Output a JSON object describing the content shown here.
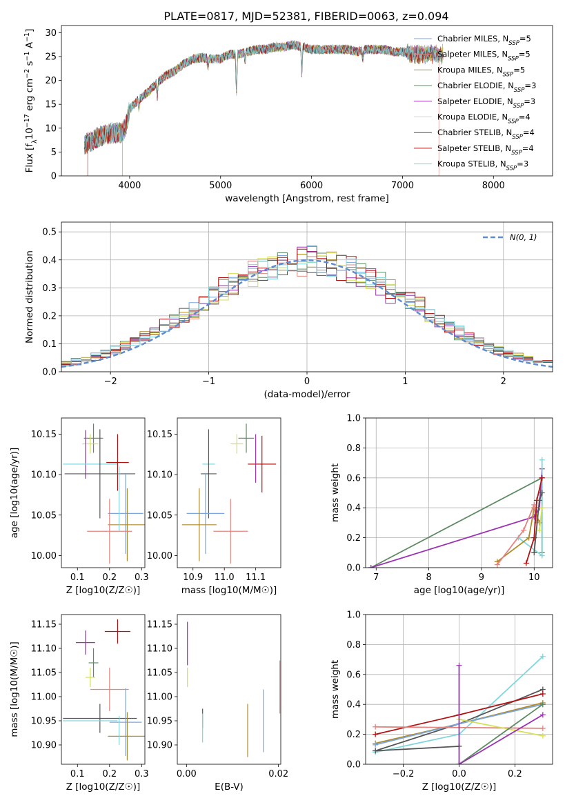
{
  "title": "PLATE=0817, MJD=52381, FIBERID=0063, z=0.094",
  "colors": {
    "Chabrier MILES": "#7aa6dd",
    "Salpeter MILES": "#e2847f",
    "Kroupa MILES": "#b08a2a",
    "Chabrier ELODIE": "#5d8a62",
    "Salpeter ELODIE": "#9a33b2",
    "Kroupa ELODIE": "#d6df55",
    "Chabrier STELIB": "#555555",
    "Salpeter STELIB": "#b11212",
    "Kroupa STELIB": "#7fd6dd",
    "ssp_orange": "#e07e1f",
    "ssp_blue": "#5f8ccf",
    "ssp_pink": "#e78ac3",
    "normal": "#5f8ccf"
  },
  "chart_data": [
    {
      "id": "spectrum",
      "type": "line",
      "title": "PLATE=0817, MJD=52381, FIBERID=0063, z=0.094",
      "xlabel": "wavelength [Angstrom, rest frame]",
      "ylabel_parts": [
        "Flux [f",
        "λ",
        "10",
        "−17",
        " erg cm",
        "−2",
        " s",
        "−1",
        " A",
        "−1",
        "]"
      ],
      "xlim": [
        3250,
        8650
      ],
      "ylim": [
        0,
        31.5
      ],
      "xticks": [
        "4000",
        "5000",
        "6000",
        "7000",
        "8000"
      ],
      "xtick_values": [
        4000,
        5000,
        6000,
        7000,
        8000
      ],
      "yticks": [
        "0",
        "5",
        "10",
        "15",
        "20",
        "25",
        "30"
      ],
      "ytick_values": [
        0,
        5,
        10,
        15,
        20,
        25,
        30
      ],
      "continuum_wavelength": [
        3500,
        3600,
        3700,
        3800,
        3900,
        3950,
        4000,
        4100,
        4200,
        4300,
        4400,
        4500,
        4600,
        4700,
        4800,
        4900,
        5000,
        5100,
        5200,
        5300,
        5400,
        5500,
        5600,
        5700,
        5800,
        5900,
        6000,
        6100,
        6200,
        6300,
        6400,
        6500,
        6600,
        6700,
        6800,
        6900,
        7000,
        7100,
        7200,
        7300,
        7400,
        7450
      ],
      "continuum_flux": [
        6.5,
        7.5,
        8.5,
        9,
        9,
        10,
        14,
        16,
        17.5,
        19.5,
        21,
        22,
        23.5,
        24.5,
        24.8,
        24.5,
        24.5,
        25.5,
        25.5,
        26,
        26.5,
        26.5,
        27,
        27,
        27.5,
        27,
        26.5,
        26.5,
        26.5,
        26.5,
        26.5,
        26,
        26.5,
        26.5,
        26.5,
        26,
        26,
        25.5,
        25.5,
        25.5,
        25.5,
        25.5
      ],
      "dips": [
        {
          "wavelength": 3934,
          "flux": 10
        },
        {
          "wavelength": 3968,
          "flux": 11
        },
        {
          "wavelength": 4101,
          "flux": 14
        },
        {
          "wavelength": 4304,
          "flux": 16.5
        },
        {
          "wavelength": 4861,
          "flux": 22.5
        },
        {
          "wavelength": 5175,
          "flux": 17
        },
        {
          "wavelength": 5270,
          "flux": 24
        },
        {
          "wavelength": 5893,
          "flux": 21
        },
        {
          "wavelength": 6563,
          "flux": 24.5
        }
      ],
      "legend": [
        {
          "label": "Chabrier MILES",
          "n": "5"
        },
        {
          "label": "Salpeter MILES",
          "n": "5"
        },
        {
          "label": "Kroupa MILES",
          "n": "5"
        },
        {
          "label": "Chabrier ELODIE",
          "n": "3"
        },
        {
          "label": "Salpeter ELODIE",
          "n": "3"
        },
        {
          "label": "Kroupa ELODIE",
          "n": "4"
        },
        {
          "label": "Chabrier STELIB",
          "n": "4"
        },
        {
          "label": "Salpeter STELIB",
          "n": "4"
        },
        {
          "label": "Kroupa STELIB",
          "n": "3"
        }
      ],
      "legend_n_prefix": "N",
      "legend_n_sub": "SSP",
      "legend_placement": "right",
      "edges": [
        {
          "series": "Salpeter STELIB",
          "wavelength": 3540
        },
        {
          "series": "Kroupa MILES",
          "wavelength": 3920
        },
        {
          "series": "Kroupa ELODIE",
          "wavelength": 6790
        },
        {
          "series": "Salpeter MILES",
          "wavelength": 7400
        }
      ]
    },
    {
      "id": "residuals",
      "type": "line",
      "subtype": "step-histogram",
      "xlabel": "(data-model)/error",
      "ylabel": "Normed distribution",
      "xlim": [
        -2.5,
        2.5
      ],
      "ylim": [
        0,
        0.535
      ],
      "xticks": [
        "−2",
        "−1",
        "0",
        "1",
        "2"
      ],
      "xtick_values": [
        -2,
        -1,
        0,
        1,
        2
      ],
      "yticks": [
        "0.0",
        "0.1",
        "0.2",
        "0.3",
        "0.4",
        "0.5"
      ],
      "ytick_values": [
        0,
        0.1,
        0.2,
        0.3,
        0.4,
        0.5
      ],
      "grid": true,
      "legend_label": "N(0, 1)",
      "legend_placement": "top-right",
      "bin_width": 0.1
    },
    {
      "id": "age-vs-z",
      "type": "scatter",
      "xlabel": "Z [log10(Z/Z☉)]",
      "ylabel": "age  [log10(age/yr)]",
      "xlim": [
        0.05,
        0.31
      ],
      "ylim": [
        9.985,
        10.17
      ],
      "xticks": [
        "0.1",
        "0.2",
        "0.3"
      ],
      "xtick_values": [
        0.1,
        0.2,
        0.3
      ],
      "yticks": [
        "10.00",
        "10.05",
        "10.10",
        "10.15"
      ],
      "ytick_values": [
        10.0,
        10.05,
        10.1,
        10.15
      ],
      "points": [
        {
          "series": "Chabrier ELODIE",
          "x": 0.15,
          "y": 10.145,
          "xerr": 0.03,
          "yerr": 0.018
        },
        {
          "series": "Kroupa ELODIE",
          "x": 0.14,
          "y": 10.138,
          "xerr": 0.025,
          "yerr": 0.012
        },
        {
          "series": "Salpeter ELODIE",
          "x": 0.125,
          "y": 10.125,
          "xerr": 0.0,
          "yerr": 0.03
        },
        {
          "series": "Kroupa STELIB",
          "x": 0.14,
          "y": 10.113,
          "xerr": 0.085,
          "yerr": 0.0
        },
        {
          "series": "Salpeter STELIB",
          "x": 0.225,
          "y": 10.115,
          "xerr": 0.035,
          "yerr": 0.035
        },
        {
          "series": "Chabrier STELIB",
          "x": 0.17,
          "y": 10.101,
          "xerr": 0.11,
          "yerr": 0.055
        },
        {
          "series": "Chabrier MILES",
          "x": 0.25,
          "y": 10.052,
          "xerr": 0.055,
          "yerr": 0.05
        },
        {
          "series": "Kroupa MILES",
          "x": 0.255,
          "y": 10.038,
          "xerr": 0.06,
          "yerr": 0.045
        },
        {
          "series": "Salpeter MILES",
          "x": 0.2,
          "y": 10.03,
          "xerr": 0.07,
          "yerr": 0.04
        },
        {
          "series": "Kroupa STELIB",
          "x": 0.23,
          "y": 10.07,
          "xerr": 0.0,
          "yerr": 0.04
        }
      ]
    },
    {
      "id": "age-vs-mass",
      "type": "scatter",
      "xlabel": "mass [log10(M/M☉)]",
      "ylabel": "",
      "xlim": [
        10.85,
        11.18
      ],
      "ylim": [
        9.985,
        10.17
      ],
      "xticks": [
        "10.9",
        "11.0",
        "11.1"
      ],
      "xtick_values": [
        10.9,
        11.0,
        11.1
      ],
      "yticks": [
        "10.00",
        "10.05",
        "10.10",
        "10.15"
      ],
      "ytick_values": [
        10.0,
        10.05,
        10.1,
        10.15
      ],
      "points": [
        {
          "series": "Chabrier ELODIE",
          "x": 11.07,
          "y": 10.145,
          "xerr": 0.025,
          "yerr": 0.018
        },
        {
          "series": "Kroupa ELODIE",
          "x": 11.04,
          "y": 10.138,
          "xerr": 0.02,
          "yerr": 0.012
        },
        {
          "series": "Salpeter STELIB",
          "x": 11.12,
          "y": 10.113,
          "xerr": 0.045,
          "yerr": 0.035
        },
        {
          "series": "Kroupa STELIB",
          "x": 10.95,
          "y": 10.113,
          "xerr": 0.02,
          "yerr": 0.0
        },
        {
          "series": "Chabrier STELIB",
          "x": 10.95,
          "y": 10.101,
          "xerr": 0.025,
          "yerr": 0.055
        },
        {
          "series": "Chabrier MILES",
          "x": 10.94,
          "y": 10.052,
          "xerr": 0.06,
          "yerr": 0.05
        },
        {
          "series": "Kroupa MILES",
          "x": 10.92,
          "y": 10.038,
          "xerr": 0.055,
          "yerr": 0.045
        },
        {
          "series": "Salpeter MILES",
          "x": 11.02,
          "y": 10.03,
          "xerr": 0.055,
          "yerr": 0.04
        },
        {
          "series": "Salpeter ELODIE",
          "x": 11.1,
          "y": 10.12,
          "xerr": 0.0,
          "yerr": 0.03
        }
      ]
    },
    {
      "id": "mass-weight-vs-age",
      "type": "line",
      "xlabel": "age  [log10(age/yr)]",
      "ylabel": "mass weight",
      "xlim": [
        6.8,
        10.35
      ],
      "ylim": [
        0,
        1
      ],
      "xticks": [
        "7",
        "8",
        "9",
        "10"
      ],
      "xtick_values": [
        7,
        8,
        9,
        10
      ],
      "yticks": [
        "0.0",
        "0.2",
        "0.4",
        "0.6",
        "0.8",
        "1.0"
      ],
      "ytick_values": [
        0,
        0.2,
        0.4,
        0.6,
        0.8,
        1.0
      ],
      "grid": true,
      "series": [
        {
          "name": "Chabrier ELODIE",
          "x": [
            6.9,
            10.15,
            10.15
          ],
          "y": [
            0.0,
            0.6,
            0.1
          ]
        },
        {
          "name": "Salpeter ELODIE",
          "x": [
            6.9,
            10.0,
            10.1,
            10.15
          ],
          "y": [
            0.0,
            0.34,
            0.4,
            0.66
          ]
        },
        {
          "name": "Kroupa STELIB",
          "x": [
            9.7,
            10.15,
            10.15
          ],
          "y": [
            0.2,
            0.08,
            0.72
          ]
        },
        {
          "name": "Kroupa MILES",
          "x": [
            9.3,
            9.9,
            10.0,
            10.1
          ],
          "y": [
            0.04,
            0.2,
            0.4,
            0.3
          ]
        },
        {
          "name": "Salpeter MILES",
          "x": [
            9.3,
            9.8,
            10.0,
            10.05
          ],
          "y": [
            0.02,
            0.25,
            0.42,
            0.3
          ]
        },
        {
          "name": "Salpeter STELIB",
          "x": [
            9.85,
            10.0,
            10.05,
            10.15
          ],
          "y": [
            0.03,
            0.2,
            0.45,
            0.6
          ]
        },
        {
          "name": "Chabrier STELIB",
          "x": [
            10.0,
            10.1,
            10.15
          ],
          "y": [
            0.1,
            0.45,
            0.5
          ]
        },
        {
          "name": "Kroupa ELODIE",
          "x": [
            10.1,
            10.15
          ],
          "y": [
            0.25,
            0.4
          ]
        }
      ]
    },
    {
      "id": "mass-vs-z",
      "type": "scatter",
      "xlabel": "Z [log10(Z/Z☉)]",
      "ylabel": "mass [log10(M/M☉)]",
      "xlim": [
        0.05,
        0.31
      ],
      "ylim": [
        10.86,
        11.17
      ],
      "xticks": [
        "0.1",
        "0.2",
        "0.3"
      ],
      "xtick_values": [
        0.1,
        0.2,
        0.3
      ],
      "yticks": [
        "10.90",
        "10.95",
        "11.00",
        "11.05",
        "11.10",
        "11.15"
      ],
      "ytick_values": [
        10.9,
        10.95,
        11.0,
        11.05,
        11.1,
        11.15
      ],
      "points": [
        {
          "series": "Salpeter STELIB",
          "x": 0.225,
          "y": 11.135,
          "xerr": 0.04,
          "yerr": 0.025
        },
        {
          "series": "Salpeter ELODIE",
          "x": 0.125,
          "y": 11.112,
          "xerr": 0.03,
          "yerr": 0.025
        },
        {
          "series": "Chabrier ELODIE",
          "x": 0.15,
          "y": 11.07,
          "xerr": 0.015,
          "yerr": 0.03
        },
        {
          "series": "Kroupa ELODIE",
          "x": 0.14,
          "y": 11.04,
          "xerr": 0.015,
          "yerr": 0.02
        },
        {
          "series": "Salpeter MILES",
          "x": 0.2,
          "y": 11.015,
          "xerr": 0.06,
          "yerr": 0.045
        },
        {
          "series": "Chabrier STELIB",
          "x": 0.17,
          "y": 10.955,
          "xerr": 0.115,
          "yerr": 0.03
        },
        {
          "series": "Kroupa STELIB",
          "x": 0.14,
          "y": 10.95,
          "xerr": 0.085,
          "yerr": 0.0
        },
        {
          "series": "Chabrier MILES",
          "x": 0.25,
          "y": 10.947,
          "xerr": 0.05,
          "yerr": 0.07
        },
        {
          "series": "Kroupa MILES",
          "x": 0.255,
          "y": 10.918,
          "xerr": 0.06,
          "yerr": 0.05
        },
        {
          "series": "Kroupa STELIB",
          "x": 0.23,
          "y": 10.93,
          "xerr": 0.0,
          "yerr": 0.03
        }
      ]
    },
    {
      "id": "mass-vs-ebv",
      "type": "scatter",
      "xlabel": "E(B-V)",
      "ylabel": "",
      "xlim": [
        -0.002,
        0.0205
      ],
      "ylim": [
        10.86,
        11.17
      ],
      "xticks": [
        "0.00",
        "0.02"
      ],
      "xtick_values": [
        0.0,
        0.02
      ],
      "yticks": [
        "10.90",
        "10.95",
        "11.00",
        "11.05",
        "11.10",
        "11.15"
      ],
      "ytick_values": [
        10.9,
        10.95,
        11.0,
        11.05,
        11.1,
        11.15
      ],
      "points": [
        {
          "series": "Salpeter ELODIE",
          "x": 0.0002,
          "y": 11.11,
          "xerr": 0.0,
          "yerr": 0.045
        },
        {
          "series": "Kroupa ELODIE",
          "x": 0.0002,
          "y": 11.04,
          "xerr": 0.0,
          "yerr": 0.02
        },
        {
          "series": "Chabrier STELIB",
          "x": 0.0035,
          "y": 10.955,
          "xerr": 0.0,
          "yerr": 0.02
        },
        {
          "series": "Kroupa STELIB",
          "x": 0.0035,
          "y": 10.935,
          "xerr": 0.0,
          "yerr": 0.03
        },
        {
          "series": "Kroupa MILES",
          "x": 0.0133,
          "y": 10.93,
          "xerr": 0.0,
          "yerr": 0.055
        },
        {
          "series": "Chabrier MILES",
          "x": 0.0167,
          "y": 10.95,
          "xerr": 0.0,
          "yerr": 0.065
        },
        {
          "series": "Salpeter MILES",
          "x": 0.0203,
          "y": 11.02,
          "xerr": 0.0,
          "yerr": 0.055
        }
      ]
    },
    {
      "id": "mass-weight-vs-z",
      "type": "line",
      "xlabel": "Z [log10(Z/Z☉)]",
      "ylabel": "mass weight",
      "xlim": [
        -0.335,
        0.335
      ],
      "ylim": [
        0,
        1
      ],
      "xticks": [
        "−0.2",
        "0.0",
        "0.2"
      ],
      "xtick_values": [
        -0.2,
        0.0,
        0.2
      ],
      "yticks": [
        "0.0",
        "0.2",
        "0.4",
        "0.6",
        "0.8",
        "1.0"
      ],
      "ytick_values": [
        0,
        0.2,
        0.4,
        0.6,
        0.8,
        1.0
      ],
      "grid": true,
      "series": [
        {
          "name": "Kroupa STELIB",
          "x": [
            -0.3,
            0.0,
            0.3
          ],
          "y": [
            0.08,
            0.2,
            0.72
          ]
        },
        {
          "name": "Chabrier STELIB",
          "x": [
            -0.3,
            0.0,
            0.3
          ],
          "y": [
            0.09,
            0.27,
            0.5
          ]
        },
        {
          "name": "Salpeter STELIB",
          "x": [
            -0.3,
            0.0,
            0.3
          ],
          "y": [
            0.2,
            0.33,
            0.47
          ]
        },
        {
          "name": "Kroupa MILES",
          "x": [
            -0.3,
            0.0,
            0.3
          ],
          "y": [
            0.14,
            0.27,
            0.41
          ]
        },
        {
          "name": "Chabrier MILES",
          "x": [
            -0.3,
            0.0,
            0.3
          ],
          "y": [
            0.13,
            0.27,
            0.4
          ]
        },
        {
          "name": "Salpeter MILES",
          "x": [
            -0.3,
            0.3
          ],
          "y": [
            0.25,
            0.24
          ]
        },
        {
          "name": "Kroupa ELODIE",
          "x": [
            0.0,
            0.3
          ],
          "y": [
            0.3,
            0.19
          ]
        },
        {
          "name": "Chabrier ELODIE",
          "x": [
            0.0,
            0.3
          ],
          "y": [
            0.0,
            0.4
          ]
        },
        {
          "name": "Salpeter ELODIE",
          "x": [
            0.0,
            0.0,
            0.3
          ],
          "y": [
            0.66,
            0.0,
            0.33
          ]
        },
        {
          "name": "Chabrier STELIB",
          "x": [
            -0.3,
            0.0
          ],
          "y": [
            0.09,
            0.12
          ]
        }
      ]
    }
  ]
}
